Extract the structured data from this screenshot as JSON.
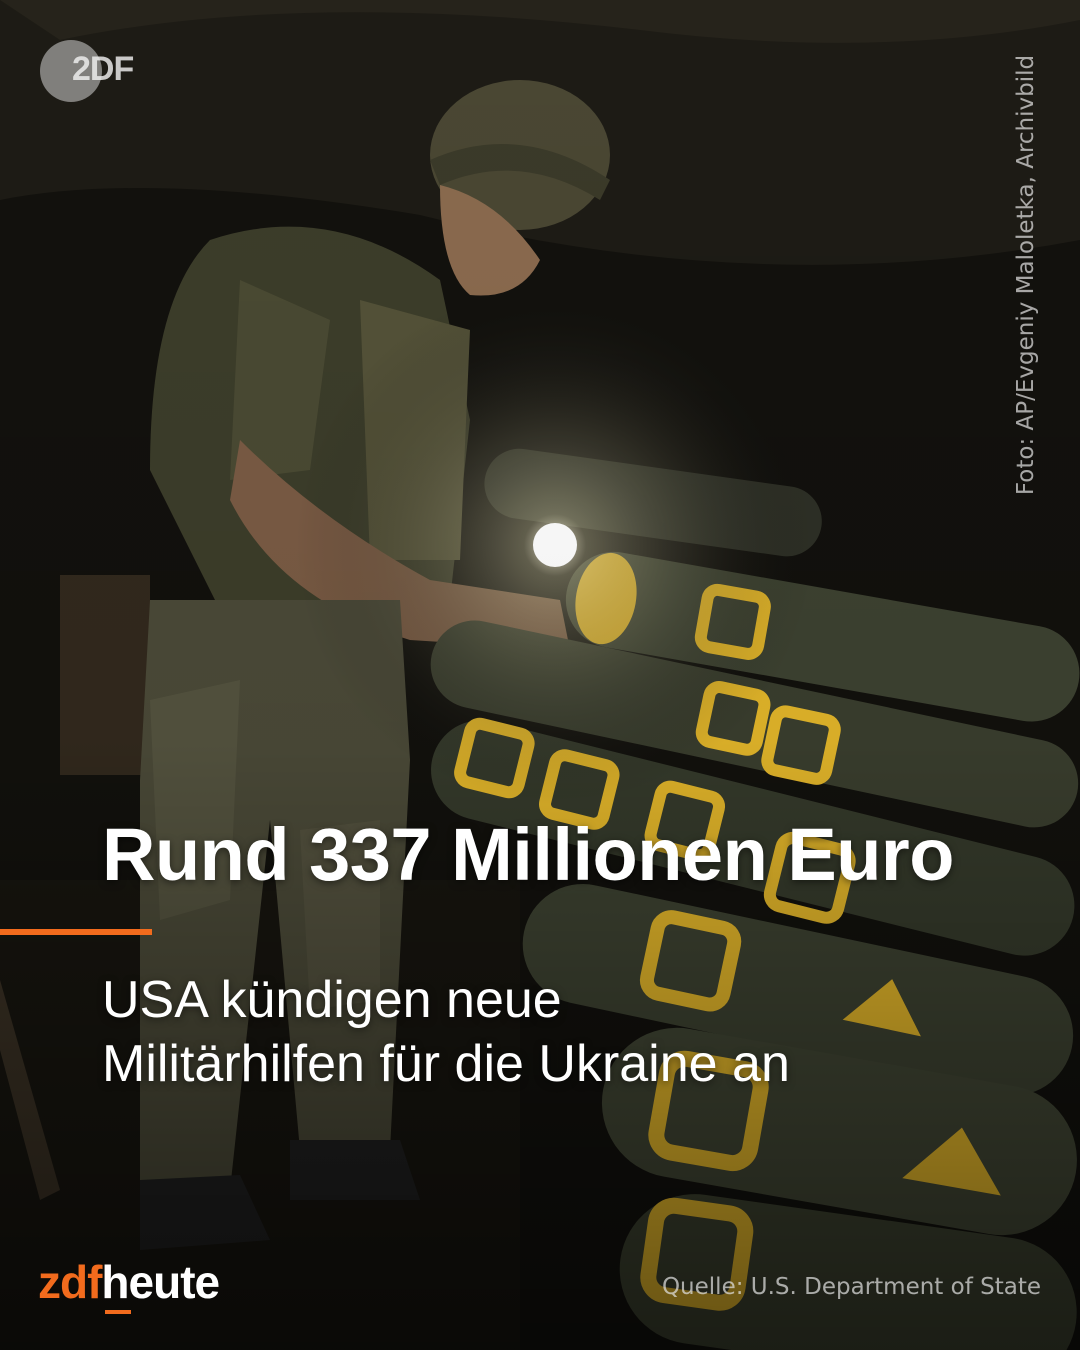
{
  "logo": {
    "text": "2DF",
    "icon": "zdf-logo-icon"
  },
  "photo_credit": "Foto: AP/Evgeniy Maloletka, Archivbild",
  "headline": "Rund 337 Millionen Euro",
  "subline": [
    "USA kündigen neue",
    "Militärhilfen für die Ukraine an"
  ],
  "brand": {
    "zdf": "zdf",
    "heute": "heute"
  },
  "source": "Quelle: U.S. Department of State",
  "colors": {
    "accent": "#f26b1d",
    "text": "#ffffff",
    "shell_yellow": "#e3b62a",
    "shell_body": "#3c4030"
  }
}
